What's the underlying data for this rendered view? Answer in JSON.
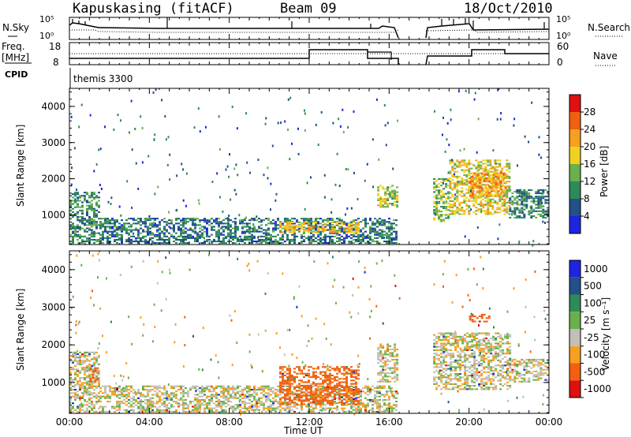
{
  "header": {
    "station": "Kapuskasing (fitACF)",
    "beam": "Beam 09",
    "date": "18/Oct/2010"
  },
  "noise_panel": {
    "left_label": "N.Sky",
    "right_label": "N.Search",
    "left_ticks": [
      "10^5",
      "10^0"
    ],
    "right_ticks": [
      "10^5",
      "10^0"
    ]
  },
  "freq_panel": {
    "left_label_1": "Freq.",
    "left_label_2": "[MHz]",
    "right_label": "Nave",
    "left_ticks": [
      "18",
      "8"
    ],
    "right_ticks": [
      "60",
      "0"
    ]
  },
  "cpid_panel": {
    "label": "CPID",
    "program": "themis 3300"
  },
  "colors": {
    "power_scale": [
      "#1f24e0",
      "#22508a",
      "#2e8b57",
      "#6ab04c",
      "#f0d020",
      "#f5a020",
      "#f06010",
      "#e01010"
    ],
    "velocity_scale": [
      "#1f24e0",
      "#22508a",
      "#2e8b57",
      "#6ab04c",
      "#c0c0b8",
      "#f5a020",
      "#f06010",
      "#e01010"
    ]
  },
  "chart_data": [
    {
      "type": "heatmap",
      "panel": "power",
      "xlabel": "",
      "ylabel": "Slant Range [km]",
      "x_ticks": [
        "00:00",
        "04:00",
        "08:00",
        "12:00",
        "16:00",
        "20:00",
        "00:00"
      ],
      "xlim_hours": [
        0,
        24
      ],
      "y_ticks": [
        1000,
        2000,
        3000,
        4000
      ],
      "ylim": [
        180,
        4500
      ],
      "colorbar_label": "Power [dB]",
      "colorbar_ticks": [
        4,
        8,
        12,
        16,
        20,
        24,
        28
      ],
      "data_gaps_hours": [
        [
          16.5,
          18.2
        ]
      ],
      "echo_regions": [
        {
          "t0": 0.0,
          "t1": 1.5,
          "r0": 200,
          "r1": 1600,
          "mean_db": 10
        },
        {
          "t0": 1.5,
          "t1": 16.4,
          "r0": 200,
          "r1": 900,
          "mean_db": 8
        },
        {
          "t0": 10.5,
          "t1": 14.5,
          "r0": 500,
          "r1": 800,
          "mean_db": 20
        },
        {
          "t0": 15.4,
          "t1": 16.4,
          "r0": 1200,
          "r1": 1800,
          "mean_db": 16
        },
        {
          "t0": 18.2,
          "t1": 19.0,
          "r0": 800,
          "r1": 2000,
          "mean_db": 14
        },
        {
          "t0": 19.0,
          "t1": 22.0,
          "r0": 1000,
          "r1": 2500,
          "mean_db": 18
        },
        {
          "t0": 20.0,
          "t1": 21.8,
          "r0": 1500,
          "r1": 2200,
          "mean_db": 22
        },
        {
          "t0": 22.0,
          "t1": 24.0,
          "r0": 900,
          "r1": 1700,
          "mean_db": 10
        }
      ]
    },
    {
      "type": "heatmap",
      "panel": "velocity",
      "xlabel": "Time UT",
      "ylabel": "Slant Range [km]",
      "x_ticks": [
        "00:00",
        "04:00",
        "08:00",
        "12:00",
        "16:00",
        "20:00",
        "00:00"
      ],
      "xlim_hours": [
        0,
        24
      ],
      "y_ticks": [
        1000,
        2000,
        3000,
        4000
      ],
      "ylim": [
        180,
        4500
      ],
      "colorbar_label": "Velocity [m s⁻¹]",
      "colorbar_ticks": [
        1000,
        500,
        100,
        25,
        -25,
        -100,
        -500,
        -1000
      ],
      "data_gaps_hours": [
        [
          16.5,
          18.2
        ]
      ],
      "echo_regions": [
        {
          "t0": 0.0,
          "t1": 1.5,
          "r0": 200,
          "r1": 1800,
          "mean_ms": 0
        },
        {
          "t0": 1.0,
          "t1": 1.4,
          "r0": 1000,
          "r1": 1400,
          "mean_ms": -300
        },
        {
          "t0": 1.5,
          "t1": 16.4,
          "r0": 200,
          "r1": 900,
          "mean_ms": 0
        },
        {
          "t0": 10.5,
          "t1": 14.5,
          "r0": 400,
          "r1": 1400,
          "mean_ms": -150
        },
        {
          "t0": 15.4,
          "t1": 16.4,
          "r0": 1000,
          "r1": 2000,
          "mean_ms": 0
        },
        {
          "t0": 18.2,
          "t1": 22.0,
          "r0": 800,
          "r1": 2300,
          "mean_ms": 0
        },
        {
          "t0": 20.0,
          "t1": 21.0,
          "r0": 2600,
          "r1": 2800,
          "mean_ms": -400
        },
        {
          "t0": 22.0,
          "t1": 24.0,
          "r0": 1000,
          "r1": 1600,
          "mean_ms": 0
        }
      ]
    }
  ]
}
